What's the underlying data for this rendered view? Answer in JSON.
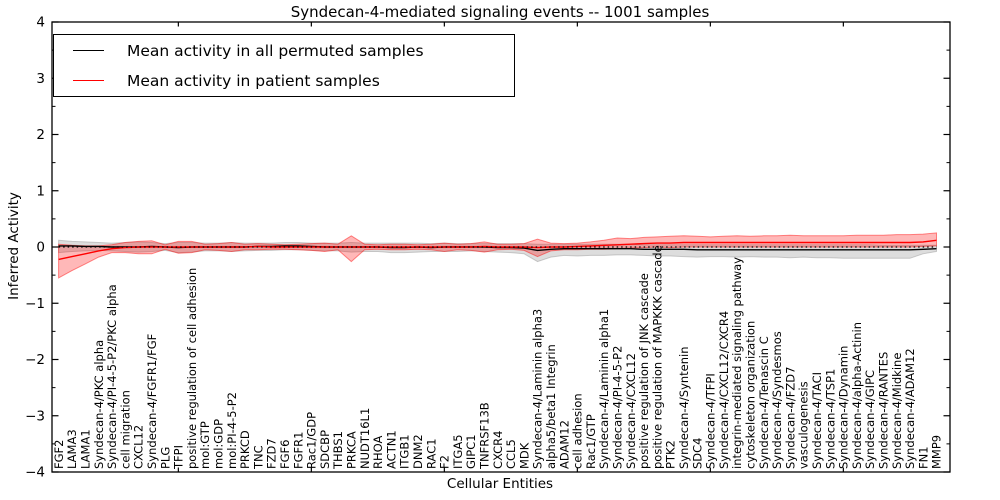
{
  "figure": {
    "title": "Syndecan-4-mediated signaling events -- 1001 samples",
    "xlabel": "Cellular Entities",
    "ylabel": "Inferred Activity"
  },
  "legend": {
    "items": [
      {
        "label": "Mean activity in all permuted samples",
        "color": "#000000"
      },
      {
        "label": "Mean activity in patient samples",
        "color": "#ff0000"
      }
    ]
  },
  "chart_data": {
    "type": "line",
    "title": "Syndecan-4-mediated signaling events -- 1001 samples",
    "xlabel": "Cellular Entities",
    "ylabel": "Inferred Activity",
    "ylim": [
      -4,
      4
    ],
    "yticks": [
      -4,
      -3,
      -2,
      -1,
      0,
      1,
      2,
      3,
      4
    ],
    "y_minor_step": 0.5,
    "xtick_indices": [
      9,
      19,
      29,
      39,
      49,
      59
    ],
    "grid": false,
    "legend_position": "upper left",
    "reference_line": {
      "y": 0,
      "style": "dotted",
      "color": "#000000"
    },
    "categories": [
      "FGF2",
      "LAMA3",
      "LAMA1",
      "Syndecan-4/PKC alpha",
      "Syndecan-4/PI-4-5-P2/PKC alpha",
      "cell migration",
      "CXCL12",
      "Syndecan-4/FGFR1/FGF",
      "PLG",
      "TFPI",
      "positive regulation of cell adhesion",
      "mol:GTP",
      "mol:GDP",
      "mol:PI-4-5-P2",
      "PRKCD",
      "TNC",
      "FZD7",
      "FGF6",
      "FGFR1",
      "Rac1/GDP",
      "SDCBP",
      "THBS1",
      "PRKCA",
      "NUDT16L1",
      "RHOA",
      "ACTN1",
      "ITGB1",
      "DNM2",
      "RAC1",
      "F2",
      "ITGA5",
      "GIPC1",
      "TNFRSF13B",
      "CXCR4",
      "CCL5",
      "MDK",
      "Syndecan-4/Laminin alpha3",
      "alpha5/beta1 Integrin",
      "ADAM12",
      "cell adhesion",
      "Rac1/GTP",
      "Syndecan-4/Laminin alpha1",
      "Syndecan-4/PI-4-5-P2",
      "Syndecan-4/CXCL12",
      "positive regulation of JNK cascade",
      "positive regulation of MAPKKK cascade",
      "PTK2",
      "Syndecan-4/Syntenin",
      "SDC4",
      "Syndecan-4/TFPI",
      "Syndecan-4/CXCL12/CXCR4",
      "integrin-mediated signaling pathway",
      "cytoskeleton organization",
      "Syndecan-4/Tenascin C",
      "Syndecan-4/Syndesmos",
      "Syndecan-4/FZD7",
      "vasculogenesis",
      "Syndecan-4/TACI",
      "Syndecan-4/TSP1",
      "Syndecan-4/Dynamin",
      "Syndecan-4/alpha-Actinin",
      "Syndecan-4/GIPC",
      "Syndecan-4/RANTES",
      "Syndecan-4/Midkine",
      "Syndecan-4/ADAM12",
      "FN1",
      "MMP9"
    ],
    "series": [
      {
        "name": "Mean activity in all permuted samples",
        "color": "#000000",
        "band_fill": "#777777",
        "values": [
          0.02,
          0.02,
          0.01,
          0.01,
          0,
          0,
          0,
          0.01,
          0,
          -0.01,
          0,
          0,
          0,
          0,
          0,
          0.01,
          0.01,
          0.02,
          0.02,
          0.01,
          0,
          0,
          0,
          0,
          0,
          -0.01,
          -0.01,
          0,
          -0.01,
          0,
          0,
          0,
          0,
          -0.01,
          -0.01,
          -0.02,
          -0.06,
          -0.04,
          -0.03,
          -0.03,
          -0.03,
          -0.03,
          -0.03,
          -0.03,
          -0.04,
          -0.04,
          -0.04,
          -0.04,
          -0.05,
          -0.05,
          -0.05,
          -0.05,
          -0.05,
          -0.05,
          -0.05,
          -0.05,
          -0.05,
          -0.05,
          -0.05,
          -0.05,
          -0.05,
          -0.05,
          -0.05,
          -0.05,
          -0.05,
          -0.04,
          -0.03
        ],
        "band_lower": [
          -0.1,
          -0.08,
          -0.07,
          -0.06,
          -0.07,
          -0.08,
          -0.09,
          -0.08,
          -0.06,
          -0.1,
          -0.09,
          -0.07,
          -0.07,
          -0.08,
          -0.07,
          -0.06,
          -0.06,
          -0.05,
          -0.05,
          -0.06,
          -0.07,
          -0.07,
          -0.09,
          -0.08,
          -0.08,
          -0.1,
          -0.1,
          -0.09,
          -0.08,
          -0.08,
          -0.08,
          -0.07,
          -0.08,
          -0.09,
          -0.1,
          -0.12,
          -0.26,
          -0.18,
          -0.15,
          -0.16,
          -0.15,
          -0.15,
          -0.14,
          -0.14,
          -0.15,
          -0.16,
          -0.16,
          -0.17,
          -0.18,
          -0.17,
          -0.17,
          -0.18,
          -0.17,
          -0.18,
          -0.18,
          -0.19,
          -0.18,
          -0.19,
          -0.19,
          -0.2,
          -0.2,
          -0.2,
          -0.2,
          -0.2,
          -0.2,
          -0.12,
          -0.08
        ],
        "band_upper": [
          0.12,
          0.1,
          0.09,
          0.08,
          0.07,
          0.08,
          0.09,
          0.08,
          0.06,
          0.08,
          0.08,
          0.07,
          0.07,
          0.08,
          0.07,
          0.07,
          0.07,
          0.08,
          0.08,
          0.07,
          0.07,
          0.07,
          0.08,
          0.07,
          0.07,
          0.07,
          0.07,
          0.07,
          0.06,
          0.07,
          0.06,
          0.06,
          0.06,
          0.06,
          0.06,
          0.06,
          0.05,
          0.05,
          0.05,
          0.05,
          0.05,
          0.05,
          0.05,
          0.05,
          0.04,
          0.04,
          0.04,
          0.04,
          0.04,
          0.04,
          0.04,
          0.04,
          0.04,
          0.04,
          0.04,
          0.04,
          0.04,
          0.04,
          0.04,
          0.04,
          0.04,
          0.04,
          0.03,
          0.03,
          0.03,
          0.03,
          0.03
        ]
      },
      {
        "name": "Mean activity in patient samples",
        "color": "#ff0000",
        "band_fill": "#ff0000",
        "values": [
          -0.22,
          -0.17,
          -0.12,
          -0.07,
          -0.03,
          -0.01,
          0,
          0,
          0,
          0,
          0,
          0,
          0,
          0,
          0,
          0.01,
          0,
          0,
          0,
          0,
          0,
          0,
          0,
          0,
          0,
          0,
          0,
          0,
          0,
          0,
          0,
          0,
          0.01,
          0,
          0,
          0,
          -0.01,
          0,
          0,
          0.01,
          0.02,
          0.03,
          0.04,
          0.05,
          0.06,
          0.07,
          0.07,
          0.08,
          0.08,
          0.08,
          0.08,
          0.08,
          0.08,
          0.08,
          0.08,
          0.08,
          0.08,
          0.08,
          0.08,
          0.08,
          0.08,
          0.08,
          0.08,
          0.08,
          0.08,
          0.09,
          0.12
        ],
        "band_lower": [
          -0.55,
          -0.42,
          -0.3,
          -0.18,
          -0.1,
          -0.1,
          -0.12,
          -0.12,
          -0.04,
          -0.11,
          -0.1,
          -0.05,
          -0.06,
          -0.08,
          -0.05,
          -0.05,
          -0.04,
          -0.04,
          -0.05,
          -0.06,
          -0.08,
          -0.05,
          -0.26,
          -0.05,
          -0.04,
          -0.05,
          -0.05,
          -0.04,
          -0.05,
          -0.08,
          -0.05,
          -0.06,
          -0.09,
          -0.05,
          -0.04,
          -0.06,
          -0.17,
          -0.07,
          -0.05,
          -0.05,
          -0.04,
          -0.04,
          -0.03,
          -0.02,
          -0.01,
          0,
          -0.01,
          0,
          0,
          0,
          0,
          0,
          0,
          0,
          0,
          0,
          0,
          0,
          0,
          0,
          0,
          0,
          0,
          0,
          0,
          0.01,
          0.02
        ],
        "band_upper": [
          0.05,
          0.03,
          0.02,
          0.02,
          0.04,
          0.08,
          0.1,
          0.11,
          0.04,
          0.1,
          0.1,
          0.05,
          0.06,
          0.08,
          0.05,
          0.06,
          0.05,
          0.04,
          0.05,
          0.06,
          0.07,
          0.05,
          0.2,
          0.05,
          0.04,
          0.05,
          0.05,
          0.04,
          0.05,
          0.07,
          0.05,
          0.06,
          0.09,
          0.05,
          0.05,
          0.06,
          0.14,
          0.07,
          0.06,
          0.07,
          0.09,
          0.12,
          0.16,
          0.15,
          0.17,
          0.18,
          0.19,
          0.2,
          0.19,
          0.18,
          0.19,
          0.2,
          0.19,
          0.2,
          0.2,
          0.21,
          0.2,
          0.2,
          0.2,
          0.2,
          0.21,
          0.21,
          0.21,
          0.22,
          0.22,
          0.23,
          0.25
        ]
      }
    ]
  }
}
